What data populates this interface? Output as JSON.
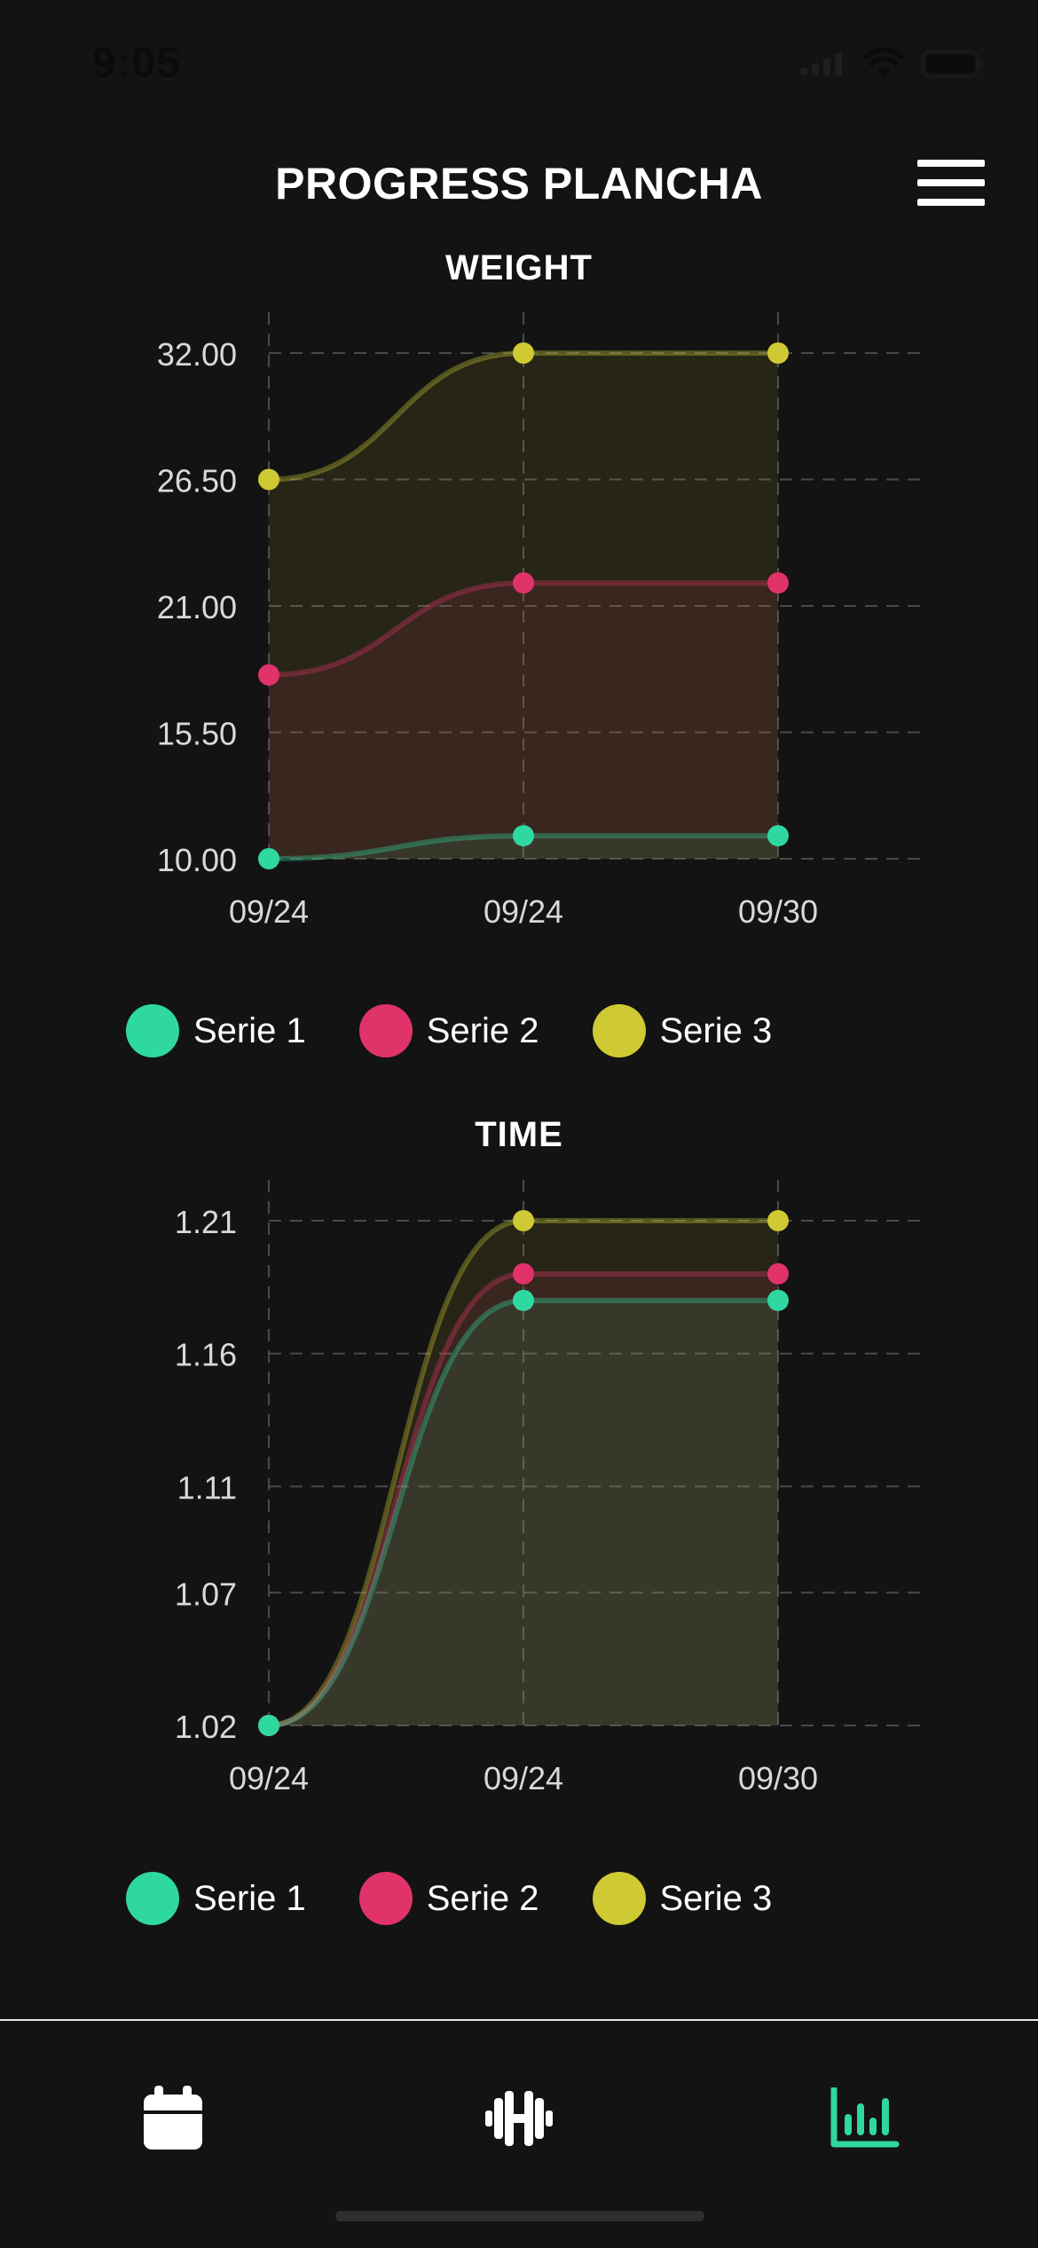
{
  "status_bar": {
    "time": "9:05"
  },
  "header": {
    "title": "PROGRESS PLANCHA",
    "menu_icon": "hamburger-menu-icon"
  },
  "colors": {
    "serie1": "#2fd8a1",
    "serie2": "#e0336a",
    "serie3": "#cfc933",
    "background": "#131313"
  },
  "legend": [
    "Serie 1",
    "Serie 2",
    "Serie 3"
  ],
  "chart_data": [
    {
      "type": "area",
      "title": "WEIGHT",
      "categories": [
        "09/24",
        "09/24",
        "09/30"
      ],
      "ylim": [
        10,
        32
      ],
      "yticks": [
        "10.00",
        "15.50",
        "21.00",
        "26.50",
        "32.00"
      ],
      "grid": true,
      "legend_position": "bottom",
      "series": [
        {
          "name": "Serie 1",
          "values": [
            10,
            11,
            11
          ]
        },
        {
          "name": "Serie 2",
          "values": [
            18,
            22,
            22
          ]
        },
        {
          "name": "Serie 3",
          "values": [
            26.5,
            32,
            32
          ]
        }
      ]
    },
    {
      "type": "area",
      "title": "TIME",
      "categories": [
        "09/24",
        "09/24",
        "09/30"
      ],
      "ylim": [
        1.02,
        1.21
      ],
      "yticks": [
        "1.02",
        "1.07",
        "1.11",
        "1.16",
        "1.21"
      ],
      "grid": true,
      "legend_position": "bottom",
      "series": [
        {
          "name": "Serie 1",
          "values": [
            1.02,
            1.18,
            1.18
          ]
        },
        {
          "name": "Serie 2",
          "values": [
            1.02,
            1.19,
            1.19
          ]
        },
        {
          "name": "Serie 3",
          "values": [
            1.02,
            1.21,
            1.21
          ]
        }
      ]
    }
  ],
  "tab_bar": {
    "items": [
      {
        "name": "calendar",
        "icon": "calendar-icon",
        "active": false
      },
      {
        "name": "workouts",
        "icon": "dumbbell-icon",
        "active": false
      },
      {
        "name": "progress",
        "icon": "bar-chart-icon",
        "active": true
      }
    ],
    "active_color": "#2fd8a1",
    "inactive_color": "#ffffff"
  }
}
